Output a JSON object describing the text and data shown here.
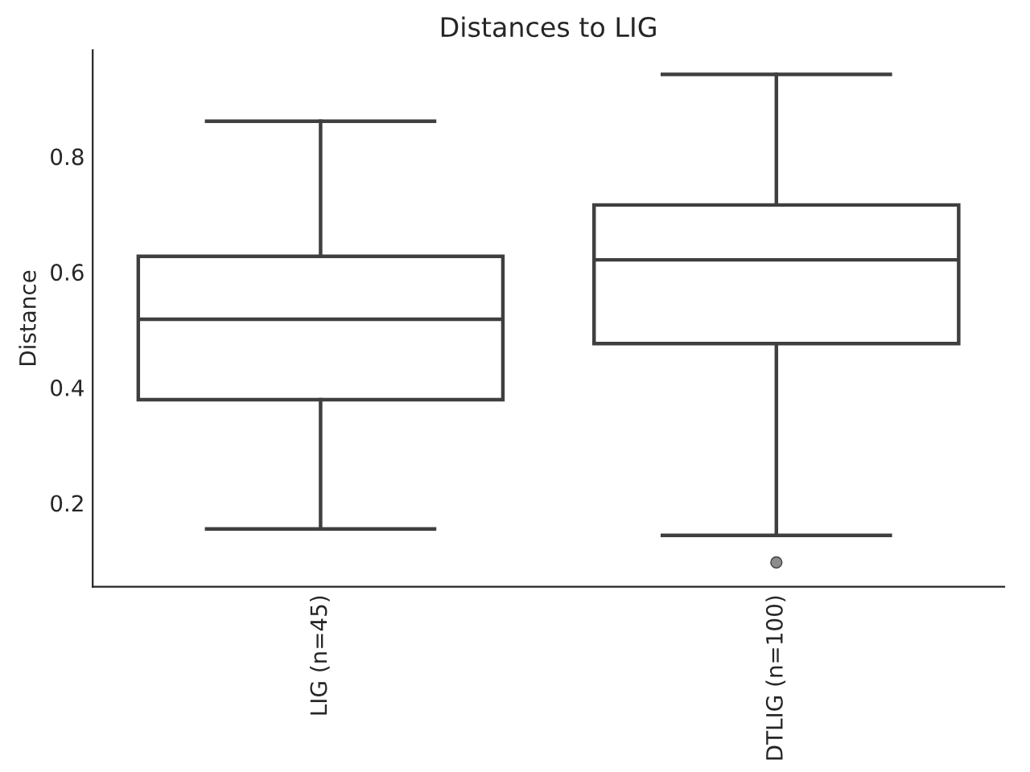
{
  "chart_data": {
    "type": "box",
    "title": "Distances to LIG",
    "ylabel": "Distance",
    "categories": [
      "LIG (n=45)",
      "DTLIG (n=100)"
    ],
    "boxes": [
      {
        "low": 0.155,
        "q1": 0.379,
        "median": 0.518,
        "q3": 0.627,
        "high": 0.861
      },
      {
        "low": 0.144,
        "q1": 0.476,
        "median": 0.621,
        "q3": 0.716,
        "high": 0.942,
        "outliers": [
          0.097
        ]
      }
    ],
    "color": "#3f3f3f",
    "ylim": [
      0.055,
      0.984
    ],
    "yticks": [
      0.2,
      0.4,
      0.6,
      0.8
    ],
    "grid": false
  }
}
